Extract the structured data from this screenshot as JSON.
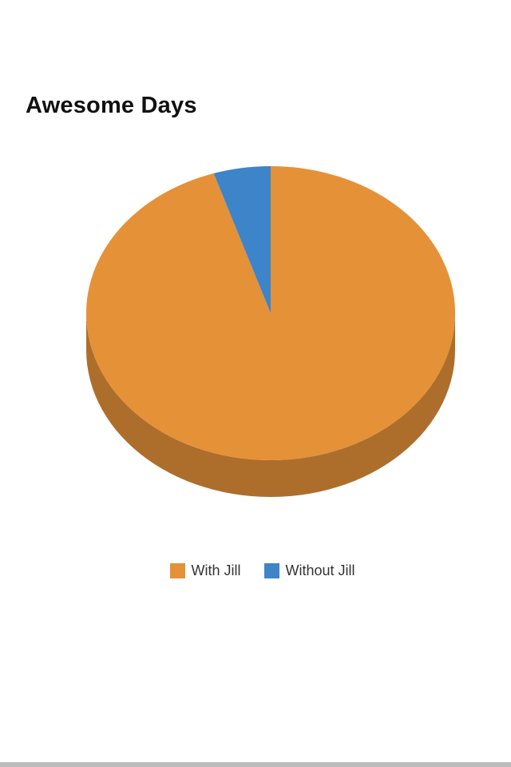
{
  "chart_data": {
    "type": "pie",
    "title": "Awesome Days",
    "series": [
      {
        "name": "With Jill",
        "value": 95,
        "color": "#E59138"
      },
      {
        "name": "Without Jill",
        "value": 5,
        "color": "#3E84C8"
      }
    ],
    "style": "3d",
    "legend_position": "bottom"
  }
}
